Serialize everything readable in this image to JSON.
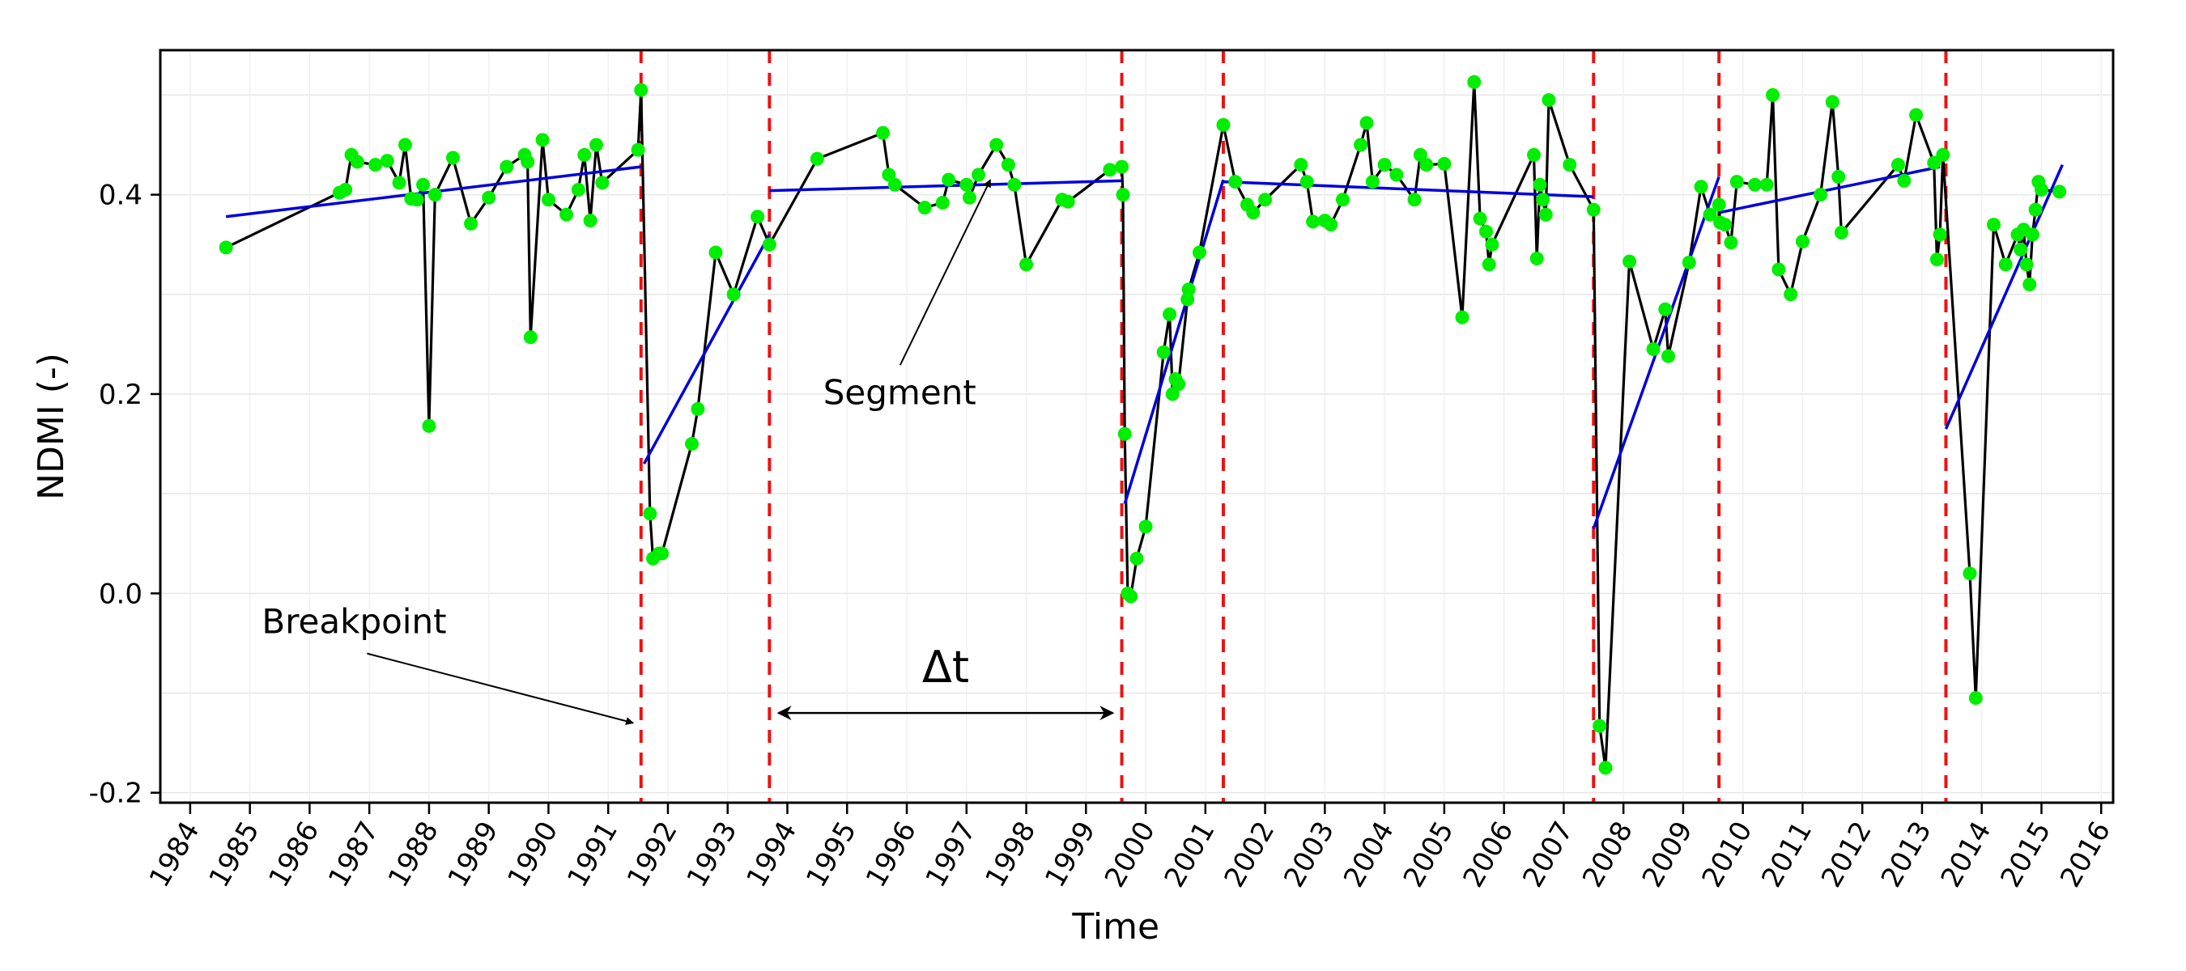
{
  "chart_data": {
    "type": "line",
    "xlabel": "Time",
    "ylabel": "NDMI (-)",
    "xlim": [
      1983.5,
      2016.2
    ],
    "ylim": [
      -0.21,
      0.545
    ],
    "x_ticks": [
      "1984",
      "1985",
      "1986",
      "1987",
      "1988",
      "1989",
      "1990",
      "1991",
      "1992",
      "1993",
      "1994",
      "1995",
      "1996",
      "1997",
      "1998",
      "1999",
      "2000",
      "2001",
      "2002",
      "2003",
      "2004",
      "2005",
      "2006",
      "2007",
      "2008",
      "2009",
      "2010",
      "2011",
      "2012",
      "2013",
      "2014",
      "2015",
      "2016"
    ],
    "y_ticks": [
      {
        "value": -0.2,
        "label": "-0.2"
      },
      {
        "value": 0.0,
        "label": "0.0"
      },
      {
        "value": 0.2,
        "label": "0.2"
      },
      {
        "value": 0.4,
        "label": "0.4"
      }
    ],
    "grid": true,
    "colors": {
      "series": "#000000",
      "points": "#00ee00",
      "segments": "#0000dd",
      "breakpoints": "#ee1111"
    },
    "series": {
      "x": [
        1984.6,
        1986.5,
        1986.6,
        1986.7,
        1986.8,
        1987.1,
        1987.3,
        1987.5,
        1987.6,
        1987.7,
        1987.8,
        1987.9,
        1988.0,
        1988.1,
        1988.4,
        1988.7,
        1989.0,
        1989.3,
        1989.6,
        1989.65,
        1989.7,
        1989.9,
        1990.0,
        1990.3,
        1990.5,
        1990.6,
        1990.7,
        1990.8,
        1990.9,
        1991.5,
        1991.55,
        1991.7,
        1991.75,
        1991.85,
        1991.9,
        1992.4,
        1992.5,
        1992.8,
        1993.1,
        1993.5,
        1993.7,
        1994.5,
        1995.6,
        1995.7,
        1995.8,
        1996.3,
        1996.6,
        1996.7,
        1997.0,
        1997.05,
        1997.2,
        1997.5,
        1997.7,
        1997.8,
        1998.0,
        1998.6,
        1998.7,
        1999.4,
        1999.6,
        1999.62,
        1999.65,
        1999.7,
        1999.75,
        1999.85,
        2000.0,
        2000.3,
        2000.4,
        2000.45,
        2000.5,
        2000.55,
        2000.7,
        2000.72,
        2000.9,
        2001.3,
        2001.5,
        2001.7,
        2001.8,
        2002.0,
        2002.6,
        2002.7,
        2002.8,
        2003.0,
        2003.1,
        2003.3,
        2003.6,
        2003.7,
        2003.8,
        2004.0,
        2004.2,
        2004.5,
        2004.6,
        2004.7,
        2005.0,
        2005.3,
        2005.5,
        2005.6,
        2005.7,
        2005.75,
        2005.8,
        2006.5,
        2006.55,
        2006.6,
        2006.65,
        2006.7,
        2006.75,
        2007.1,
        2007.5,
        2007.6,
        2007.7,
        2008.1,
        2008.5,
        2008.7,
        2008.75,
        2009.1,
        2009.3,
        2009.45,
        2009.6,
        2009.62,
        2009.7,
        2009.8,
        2009.9,
        2010.2,
        2010.4,
        2010.5,
        2010.6,
        2010.8,
        2011.0,
        2011.3,
        2011.5,
        2011.6,
        2011.65,
        2012.6,
        2012.7,
        2012.9,
        2013.2,
        2013.25,
        2013.3,
        2013.35,
        2013.8,
        2013.9,
        2014.2,
        2014.4,
        2014.6,
        2014.65,
        2014.7,
        2014.75,
        2014.8,
        2014.85,
        2014.9,
        2014.95,
        2015.0,
        2015.3
      ],
      "y": [
        0.347,
        0.402,
        0.405,
        0.44,
        0.433,
        0.43,
        0.434,
        0.412,
        0.45,
        0.396,
        0.395,
        0.41,
        0.168,
        0.4,
        0.437,
        0.371,
        0.397,
        0.428,
        0.44,
        0.433,
        0.257,
        0.455,
        0.395,
        0.38,
        0.405,
        0.44,
        0.374,
        0.45,
        0.412,
        0.445,
        0.505,
        0.08,
        0.035,
        0.04,
        0.04,
        0.15,
        0.185,
        0.342,
        0.3,
        0.378,
        0.35,
        0.436,
        0.462,
        0.42,
        0.41,
        0.387,
        0.392,
        0.415,
        0.41,
        0.397,
        0.42,
        0.45,
        0.43,
        0.41,
        0.33,
        0.395,
        0.393,
        0.425,
        0.428,
        0.4,
        0.16,
        0.0,
        -0.003,
        0.035,
        0.067,
        0.242,
        0.28,
        0.2,
        0.215,
        0.21,
        0.295,
        0.305,
        0.342,
        0.47,
        0.413,
        0.39,
        0.382,
        0.395,
        0.43,
        0.413,
        0.373,
        0.374,
        0.37,
        0.395,
        0.45,
        0.472,
        0.413,
        0.43,
        0.42,
        0.395,
        0.44,
        0.43,
        0.431,
        0.277,
        0.513,
        0.376,
        0.363,
        0.33,
        0.35,
        0.44,
        0.336,
        0.41,
        0.395,
        0.38,
        0.495,
        0.43,
        0.385,
        -0.133,
        -0.175,
        0.333,
        0.245,
        0.285,
        0.238,
        0.332,
        0.408,
        0.38,
        0.39,
        0.372,
        0.37,
        0.352,
        0.413,
        0.41,
        0.41,
        0.5,
        0.325,
        0.3,
        0.353,
        0.4,
        0.493,
        0.418,
        0.362,
        0.43,
        0.414,
        0.48,
        0.432,
        0.335,
        0.36,
        0.44,
        0.02,
        -0.105,
        0.37,
        0.33,
        0.36,
        0.345,
        0.365,
        0.33,
        0.31,
        0.36,
        0.385,
        0.413,
        0.405,
        0.403
      ]
    },
    "segments": [
      {
        "x": [
          1984.6,
          1991.55
        ],
        "y": [
          0.378,
          0.428
        ]
      },
      {
        "x": [
          1991.6,
          1993.7
        ],
        "y": [
          0.13,
          0.36
        ]
      },
      {
        "x": [
          1993.7,
          1999.6
        ],
        "y": [
          0.404,
          0.414
        ]
      },
      {
        "x": [
          1999.65,
          2001.3
        ],
        "y": [
          0.09,
          0.415
        ]
      },
      {
        "x": [
          2001.3,
          2007.5
        ],
        "y": [
          0.413,
          0.398
        ]
      },
      {
        "x": [
          2007.5,
          2009.6
        ],
        "y": [
          0.065,
          0.418
        ]
      },
      {
        "x": [
          2009.6,
          2013.3
        ],
        "y": [
          0.382,
          0.428
        ]
      },
      {
        "x": [
          2013.4,
          2015.35
        ],
        "y": [
          0.165,
          0.43
        ]
      }
    ],
    "breakpoints": [
      1991.55,
      1993.7,
      1999.6,
      2001.3,
      2007.5,
      2009.6,
      2013.4
    ],
    "annotations": {
      "breakpoint": {
        "text": "Breakpoint",
        "text_at": [
          1985.2,
          -0.04
        ],
        "arrow_to": [
          1991.5,
          -0.13
        ]
      },
      "segment": {
        "text": "Segment",
        "text_at": [
          1994.6,
          0.19
        ],
        "arrow_to": [
          1997.4,
          0.415
        ]
      },
      "delta_t": {
        "text": "Δt",
        "y": -0.12,
        "from_x": 1993.85,
        "to_x": 1999.45
      }
    }
  }
}
